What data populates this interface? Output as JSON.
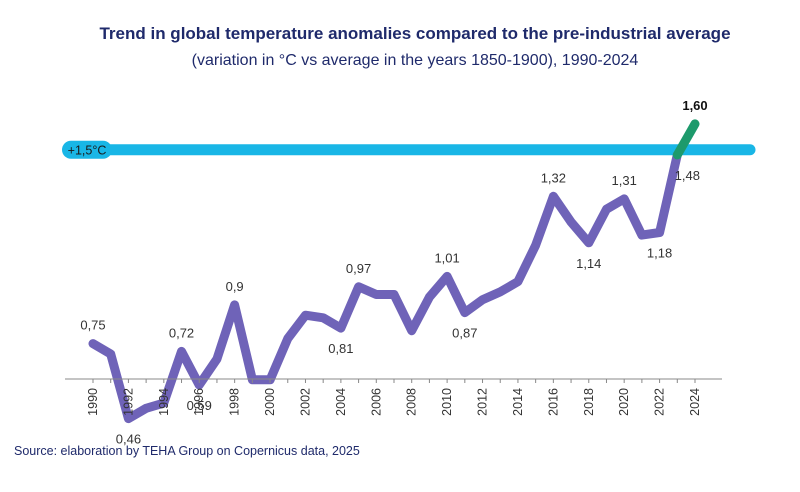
{
  "chart_data": {
    "type": "line",
    "title": "Trend in global temperature anomalies compared to the pre-industrial average",
    "subtitle": "(variation in °C vs average in the years 1850-1900), 1990-2024",
    "source": "Source: elaboration by TEHA Group on Copernicus data, 2025",
    "xlabel": "",
    "ylabel": "",
    "x": [
      1990,
      1991,
      1992,
      1993,
      1994,
      1995,
      1996,
      1997,
      1998,
      1999,
      2000,
      2001,
      2002,
      2003,
      2004,
      2005,
      2006,
      2007,
      2008,
      2009,
      2010,
      2011,
      2012,
      2013,
      2014,
      2015,
      2016,
      2017,
      2018,
      2019,
      2020,
      2021,
      2022,
      2023,
      2024
    ],
    "values": [
      0.75,
      0.71,
      0.46,
      0.5,
      0.52,
      0.72,
      0.59,
      0.69,
      0.9,
      0.61,
      0.61,
      0.77,
      0.86,
      0.85,
      0.81,
      0.97,
      0.94,
      0.94,
      0.8,
      0.93,
      1.01,
      0.87,
      0.92,
      0.95,
      0.99,
      1.13,
      1.32,
      1.22,
      1.14,
      1.27,
      1.31,
      1.17,
      1.18,
      1.48,
      1.6
    ],
    "xticks": [
      "1990",
      "1992",
      "1994",
      "1996",
      "1998",
      "2000",
      "2002",
      "2004",
      "2006",
      "2008",
      "2010",
      "2012",
      "2014",
      "2016",
      "2018",
      "2020",
      "2022",
      "2024"
    ],
    "data_labels": [
      {
        "year": 1990,
        "text": "0,75",
        "pos": "above"
      },
      {
        "year": 1992,
        "text": "0,46",
        "pos": "below"
      },
      {
        "year": 1995,
        "text": "0,72",
        "pos": "above"
      },
      {
        "year": 1996,
        "text": "0,59",
        "pos": "below"
      },
      {
        "year": 1998,
        "text": "0,9",
        "pos": "above"
      },
      {
        "year": 2004,
        "text": "0,81",
        "pos": "below"
      },
      {
        "year": 2005,
        "text": "0,97",
        "pos": "above"
      },
      {
        "year": 2010,
        "text": "1,01",
        "pos": "above"
      },
      {
        "year": 2011,
        "text": "0,87",
        "pos": "below"
      },
      {
        "year": 2016,
        "text": "1,32",
        "pos": "above"
      },
      {
        "year": 2018,
        "text": "1,14",
        "pos": "below"
      },
      {
        "year": 2020,
        "text": "1,31",
        "pos": "above"
      },
      {
        "year": 2022,
        "text": "1,18",
        "pos": "below"
      },
      {
        "year": 2023,
        "text": "1,48",
        "pos": "below"
      },
      {
        "year": 2024,
        "text": "1,60",
        "pos": "above",
        "bold": true
      }
    ],
    "threshold": {
      "value": 1.5,
      "label": "+1,5°C"
    },
    "ylim": [
      0.3,
      1.7
    ],
    "grid": false,
    "colors": {
      "main_line": "#6f63b8",
      "last_segment": "#1d9a6c",
      "threshold": "#19b6e6",
      "axis": "#888888",
      "title": "#1f2a6b"
    }
  }
}
